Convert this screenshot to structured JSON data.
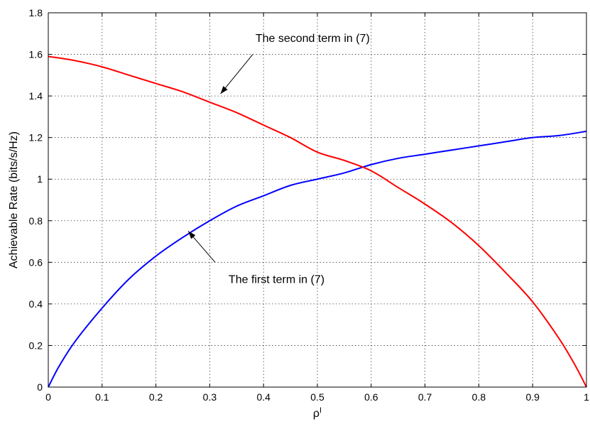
{
  "chart_data": {
    "type": "line",
    "title": "",
    "xlabel": "ρ",
    "xlabel_sup": "I",
    "ylabel": "Achievable Rate (bits/s/Hz)",
    "xlim": [
      0,
      1
    ],
    "ylim": [
      0,
      1.8
    ],
    "grid": true,
    "x_ticks": [
      0,
      0.1,
      0.2,
      0.3,
      0.4,
      0.5,
      0.6,
      0.7,
      0.8,
      0.9,
      1
    ],
    "x_tick_labels": [
      "0",
      "0.1",
      "0.2",
      "0.3",
      "0.4",
      "0.5",
      "0.6",
      "0.7",
      "0.8",
      "0.9",
      "1"
    ],
    "y_ticks": [
      0,
      0.2,
      0.4,
      0.6,
      0.8,
      1,
      1.2,
      1.4,
      1.6,
      1.8
    ],
    "y_tick_labels": [
      "0",
      "0.2",
      "0.4",
      "0.6",
      "0.8",
      "1",
      "1.2",
      "1.4",
      "1.6",
      "1.8"
    ],
    "series": [
      {
        "color": "#0000ff",
        "x": [
          0,
          0.02,
          0.05,
          0.1,
          0.15,
          0.2,
          0.25,
          0.3,
          0.35,
          0.4,
          0.45,
          0.5,
          0.55,
          0.6,
          0.65,
          0.7,
          0.75,
          0.8,
          0.85,
          0.9,
          0.95,
          1
        ],
        "y": [
          0,
          0.1,
          0.22,
          0.38,
          0.52,
          0.63,
          0.72,
          0.8,
          0.87,
          0.92,
          0.97,
          1.0,
          1.03,
          1.07,
          1.1,
          1.12,
          1.14,
          1.16,
          1.18,
          1.2,
          1.21,
          1.23
        ]
      },
      {
        "color": "#ff0000",
        "x": [
          0,
          0.05,
          0.1,
          0.15,
          0.2,
          0.25,
          0.3,
          0.35,
          0.4,
          0.45,
          0.5,
          0.55,
          0.6,
          0.65,
          0.7,
          0.75,
          0.8,
          0.85,
          0.9,
          0.95,
          0.98,
          1
        ],
        "y": [
          1.59,
          1.57,
          1.54,
          1.5,
          1.46,
          1.42,
          1.37,
          1.32,
          1.26,
          1.2,
          1.13,
          1.09,
          1.04,
          0.96,
          0.88,
          0.79,
          0.68,
          0.55,
          0.41,
          0.23,
          0.1,
          0
        ]
      }
    ],
    "annotations": [
      {
        "text": "The second term in (7)",
        "text_x": 0.385,
        "text_y": 1.66,
        "arrow_from": [
          0.38,
          1.6
        ],
        "arrow_to": [
          0.32,
          1.41
        ]
      },
      {
        "text": "The first term in (7)",
        "text_x": 0.335,
        "text_y": 0.5,
        "arrow_from": [
          0.31,
          0.6
        ],
        "arrow_to": [
          0.26,
          0.75
        ]
      }
    ]
  }
}
